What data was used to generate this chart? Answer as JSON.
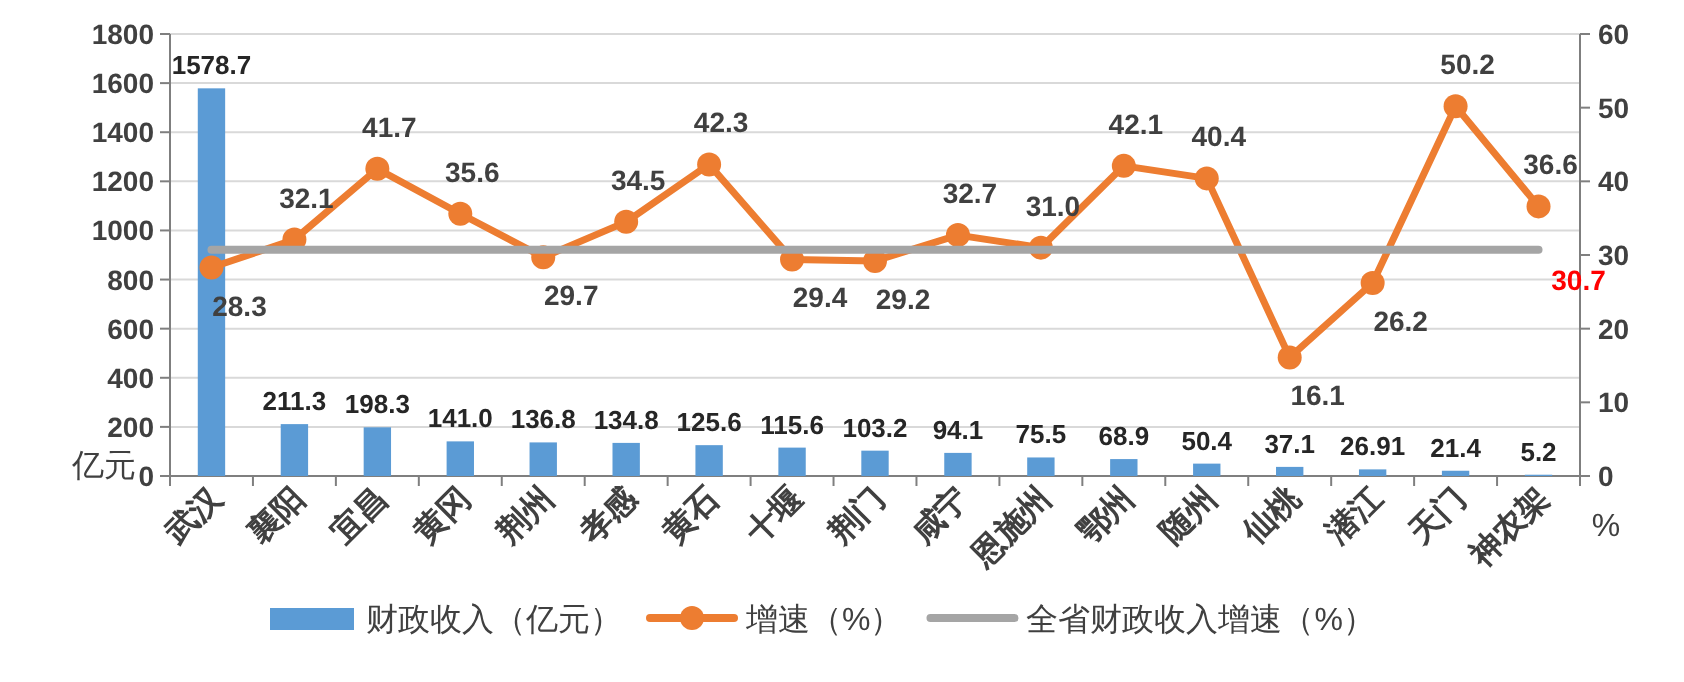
{
  "chart_data": {
    "type": "bar",
    "categories": [
      "武汉",
      "襄阳",
      "宜昌",
      "黄冈",
      "荆州",
      "孝感",
      "黄石",
      "十堰",
      "荆门",
      "咸宁",
      "恩施州",
      "鄂州",
      "随州",
      "仙桃",
      "潜江",
      "天门",
      "神农架"
    ],
    "series": [
      {
        "name": "财政收入（亿元）",
        "color": "#5b9bd5",
        "values": [
          1578.7,
          211.3,
          198.3,
          141.0,
          136.8,
          134.8,
          125.6,
          115.6,
          103.2,
          94.1,
          75.5,
          68.9,
          50.4,
          37.1,
          26.91,
          21.4,
          5.2
        ],
        "value_labels": [
          "1578.7",
          "211.3",
          "198.3",
          "141.0",
          "136.8",
          "134.8",
          "125.6",
          "115.6",
          "103.2",
          "94.1",
          "75.5",
          "68.9",
          "50.4",
          "37.1",
          "26.91",
          "21.4",
          "5.2"
        ]
      },
      {
        "name": "增速（%）",
        "type": "line",
        "axis": "y2",
        "color": "#ed7d31",
        "marker": "circle",
        "values": [
          28.3,
          32.1,
          41.7,
          35.6,
          29.7,
          34.5,
          42.3,
          29.4,
          29.2,
          32.7,
          31.0,
          42.1,
          40.4,
          16.1,
          26.2,
          50.2,
          36.6
        ],
        "value_labels": [
          "28.3",
          "32.1",
          "41.7",
          "35.6",
          "29.7",
          "34.5",
          "42.3",
          "29.4",
          "29.2",
          "32.7",
          "31.0",
          "42.1",
          "40.4",
          "16.1",
          "26.2",
          "50.2",
          "36.6"
        ]
      },
      {
        "name": "全省财政收入增速（%）",
        "type": "line",
        "axis": "y2",
        "color": "#a5a5a5",
        "values": [
          30.7,
          30.7,
          30.7,
          30.7,
          30.7,
          30.7,
          30.7,
          30.7,
          30.7,
          30.7,
          30.7,
          30.7,
          30.7,
          30.7,
          30.7,
          30.7,
          30.7
        ],
        "value_labels": [
          null,
          null,
          null,
          null,
          null,
          null,
          null,
          null,
          null,
          null,
          null,
          null,
          null,
          null,
          null,
          null,
          "30.7"
        ]
      }
    ],
    "ylim": [
      0,
      1800
    ],
    "yticks": [
      0,
      200,
      400,
      600,
      800,
      1000,
      1200,
      1400,
      1600,
      1800
    ],
    "y2lim": [
      0,
      60
    ],
    "y2ticks": [
      0,
      10,
      20,
      30,
      40,
      50,
      60
    ],
    "ylabel": "亿元",
    "y2label": "%",
    "grid": "y",
    "legend": "bottom"
  }
}
